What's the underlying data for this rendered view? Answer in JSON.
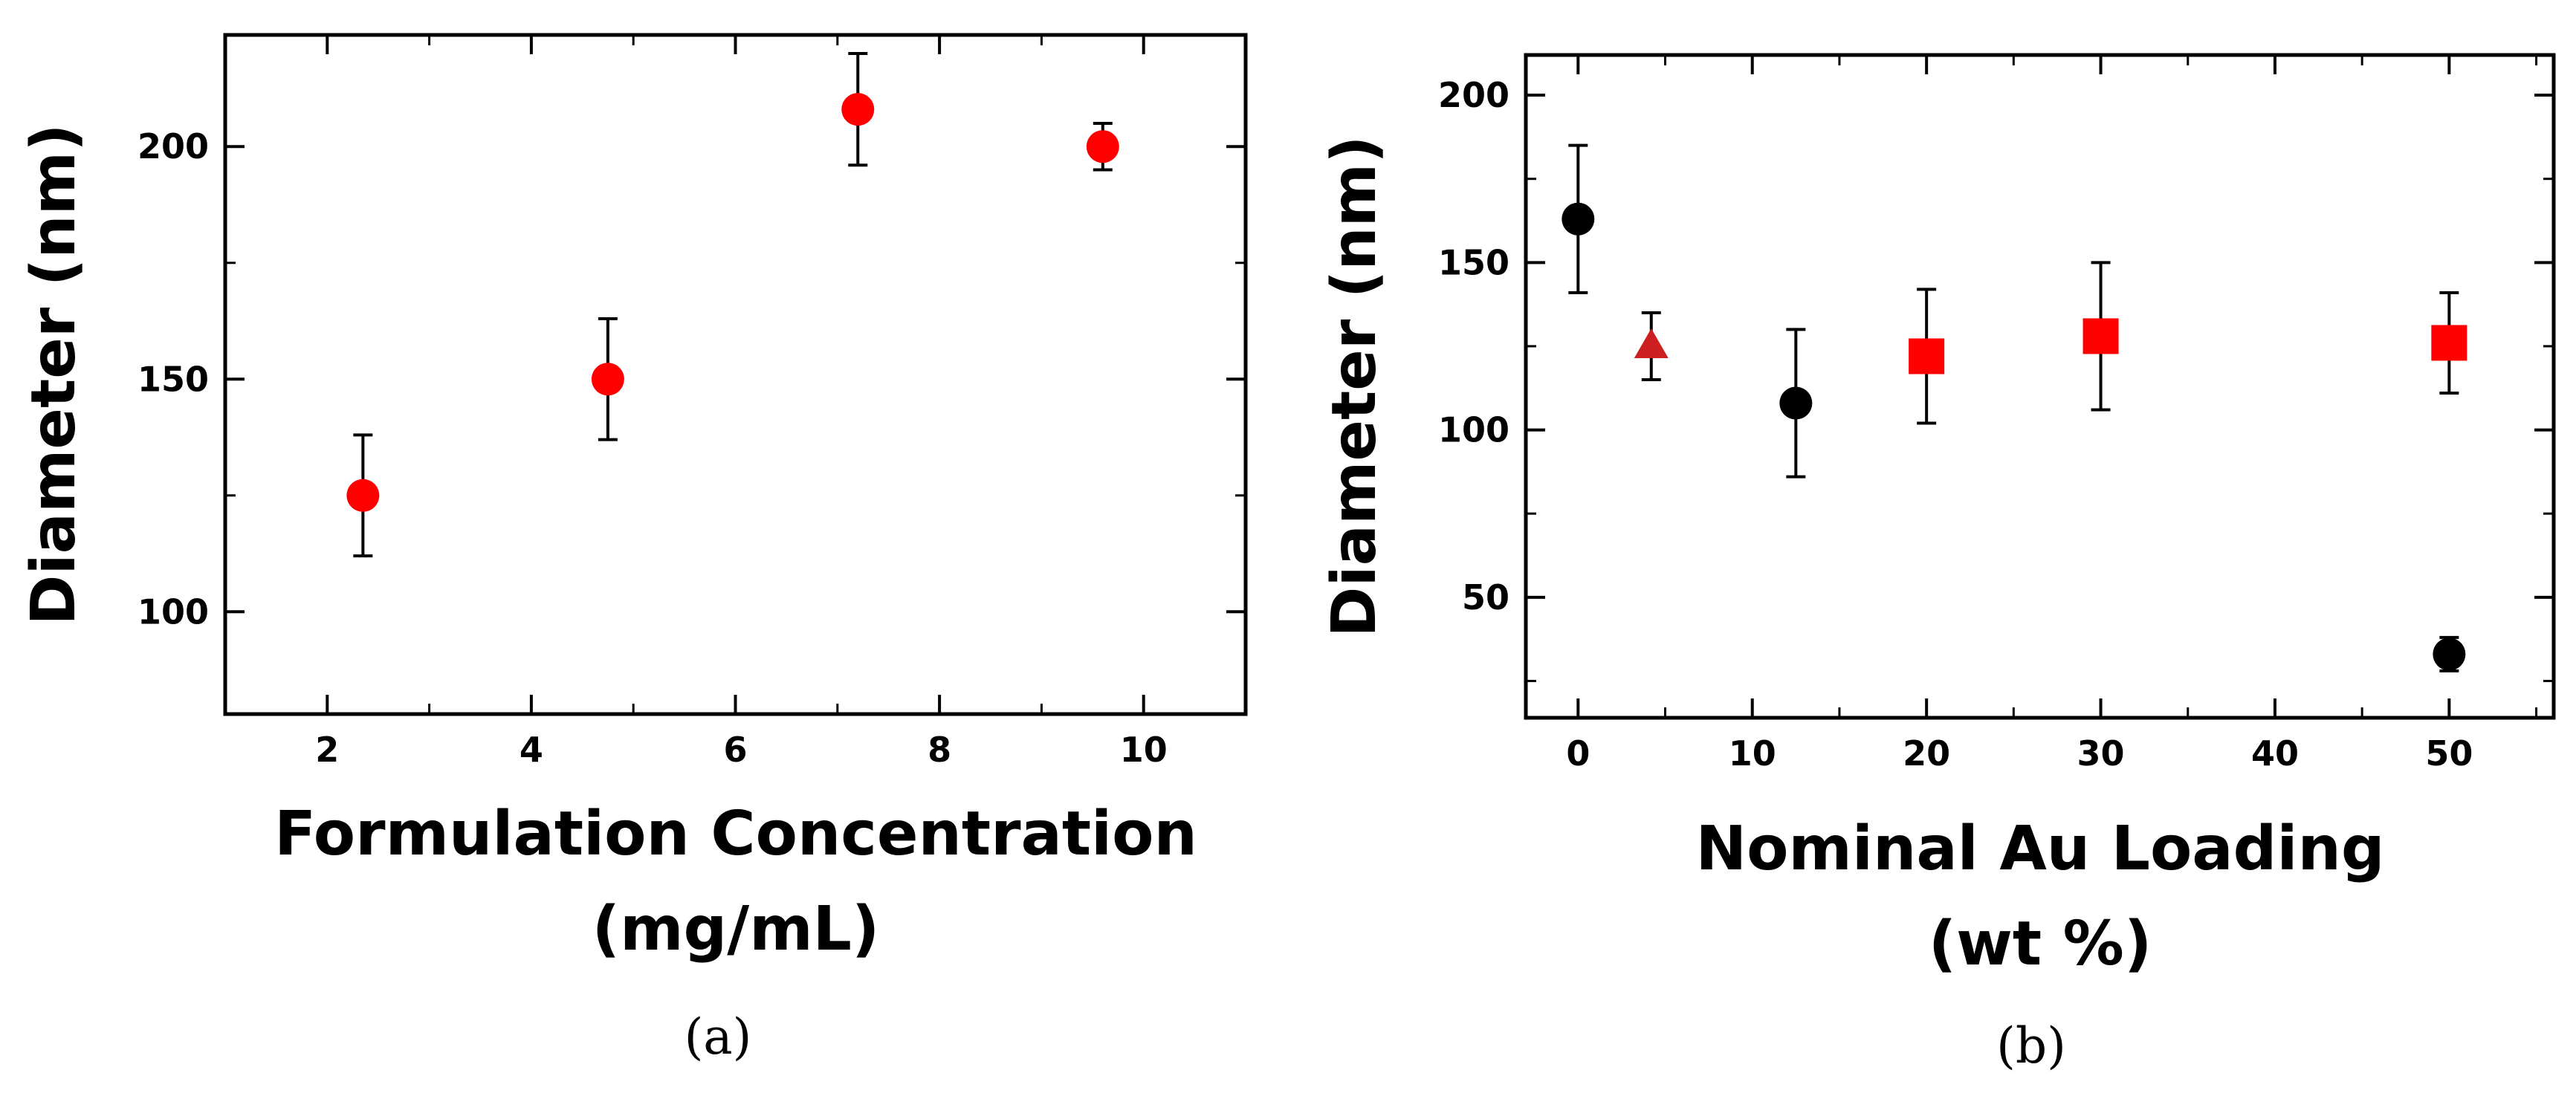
{
  "chart_data": [
    {
      "type": "scatter",
      "panel_label": "(a)",
      "xlabel_line1": "Formulation Concentration",
      "xlabel_line2": "(mg/mL)",
      "ylabel": "Diameter (nm)",
      "xlim": [
        1,
        11
      ],
      "ylim": [
        78,
        224
      ],
      "xticks": [
        "2",
        "4",
        "6",
        "8",
        "10"
      ],
      "yticks": [
        "100",
        "150",
        "200"
      ],
      "series": [
        {
          "color": "#ff0000",
          "marker": "circle",
          "points": [
            {
              "x": 2.35,
              "y": 125,
              "err": 13
            },
            {
              "x": 4.75,
              "y": 150,
              "err": 13
            },
            {
              "x": 7.2,
              "y": 208,
              "err": 12
            },
            {
              "x": 9.6,
              "y": 200,
              "err": 5
            }
          ]
        }
      ]
    },
    {
      "type": "scatter",
      "panel_label": "(b)",
      "xlabel_line1": "Nominal Au Loading",
      "xlabel_line2": "(wt %)",
      "ylabel": "Diameter (nm)",
      "xlim": [
        -3,
        56
      ],
      "ylim": [
        14,
        212
      ],
      "xticks": [
        "0",
        "10",
        "20",
        "30",
        "40",
        "50"
      ],
      "yticks": [
        "50",
        "100",
        "150",
        "200"
      ],
      "series": [
        {
          "color": "#000000",
          "marker": "circle",
          "points": [
            {
              "x": 0,
              "y": 163,
              "err": 22
            },
            {
              "x": 12.5,
              "y": 108,
              "err": 22
            },
            {
              "x": 50,
              "y": 33,
              "err": 5
            }
          ]
        },
        {
          "color": "#cc1f1f",
          "marker": "triangle",
          "points": [
            {
              "x": 4.2,
              "y": 125,
              "err": 10
            }
          ]
        },
        {
          "color": "#ff0000",
          "marker": "square",
          "points": [
            {
              "x": 20,
              "y": 122,
              "err": 20
            },
            {
              "x": 30,
              "y": 128,
              "err": 22
            },
            {
              "x": 50,
              "y": 126,
              "err": 15
            }
          ]
        }
      ]
    }
  ]
}
